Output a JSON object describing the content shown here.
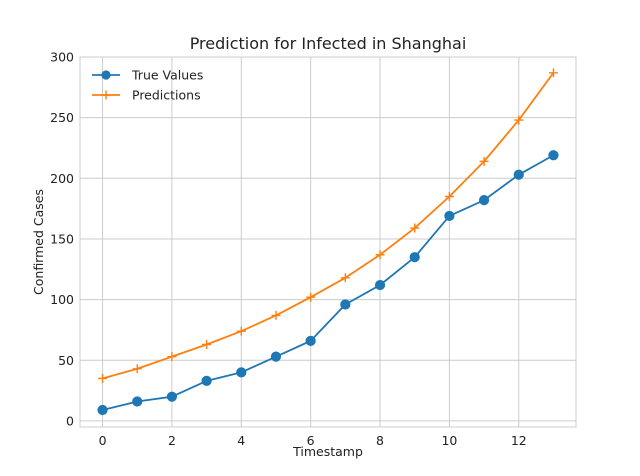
{
  "chart_data": {
    "type": "line",
    "title": "Prediction for Infected in Shanghai",
    "xlabel": "Timestamp",
    "ylabel": "Confirmed Cases",
    "x": [
      0,
      1,
      2,
      3,
      4,
      5,
      6,
      7,
      8,
      9,
      10,
      11,
      12,
      13
    ],
    "xlim": [
      -0.65,
      13.65
    ],
    "ylim": [
      -5,
      300
    ],
    "xticks": [
      0,
      2,
      4,
      6,
      8,
      10,
      12
    ],
    "yticks": [
      0,
      50,
      100,
      150,
      200,
      250,
      300
    ],
    "grid": true,
    "legend_position": "top-left",
    "series": [
      {
        "name": "True Values",
        "color": "#1f77b4",
        "marker": "circle",
        "values": [
          9,
          16,
          20,
          33,
          40,
          53,
          66,
          96,
          112,
          135,
          169,
          182,
          203,
          219
        ]
      },
      {
        "name": "Predictions",
        "color": "#ff7f0e",
        "marker": "plus",
        "values": [
          35,
          43,
          53,
          63,
          74,
          87,
          102,
          118,
          137,
          159,
          185,
          214,
          248,
          287
        ]
      }
    ]
  }
}
